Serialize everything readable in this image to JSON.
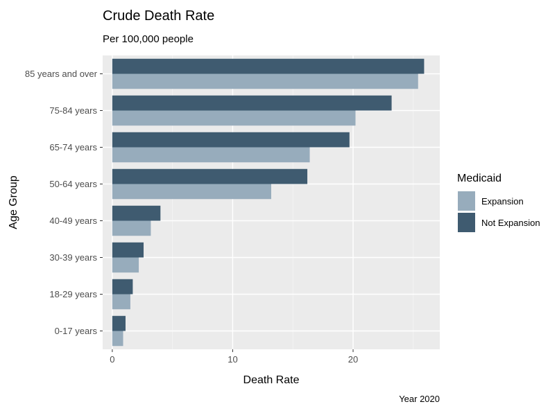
{
  "chart_data": {
    "type": "bar",
    "orientation": "horizontal",
    "title": "Crude Death Rate",
    "subtitle": "Per 100,000 people",
    "xlabel": "Death Rate",
    "ylabel": "Age Group",
    "caption": "Year 2020",
    "xlim": [
      -0.8,
      27.2
    ],
    "xticks": [
      0,
      10,
      20
    ],
    "grid": true,
    "legend": {
      "title": "Medicaid",
      "position": "right"
    },
    "categories": [
      "0-17 years",
      "18-29 years",
      "30-39 years",
      "40-49 years",
      "50-64 years",
      "65-74 years",
      "75-84 years",
      "85 years and over"
    ],
    "series": [
      {
        "name": "Expansion",
        "color": "#97acbc",
        "values": [
          0.9,
          1.5,
          2.2,
          3.2,
          13.2,
          16.4,
          20.2,
          25.4
        ]
      },
      {
        "name": "Not Expansion",
        "color": "#3f5b70",
        "values": [
          1.1,
          1.7,
          2.6,
          4.0,
          16.2,
          19.7,
          23.2,
          25.9
        ]
      }
    ]
  }
}
